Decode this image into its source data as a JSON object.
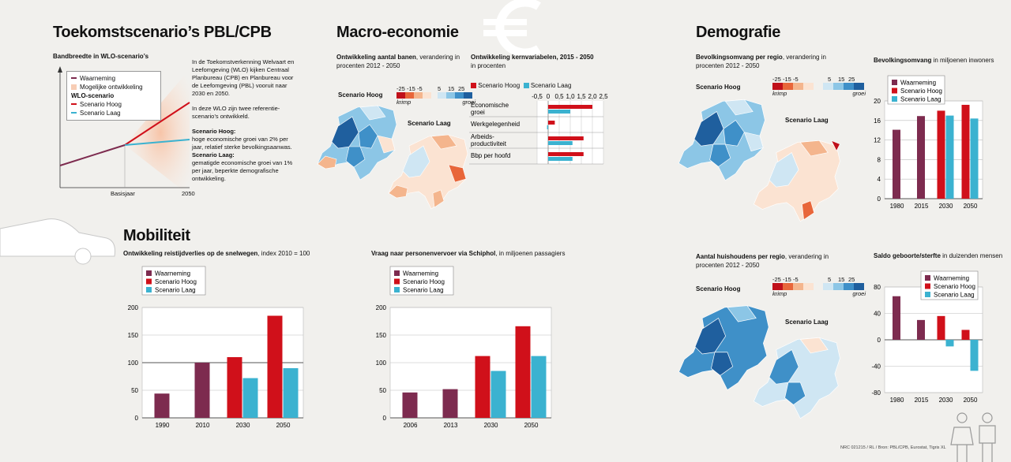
{
  "colors": {
    "waarneming": "#7d2b4f",
    "hoog": "#d0101a",
    "laag": "#3bb2d0"
  },
  "left": {
    "title": "Toekomstscenario’s PBL/CPB",
    "subtitle": "Bandbreedte in WLO-scenario’s",
    "legend": [
      "Waarneming",
      "Mogelijke ontwikkeling",
      "WLO-scenario",
      "Scenario Hoog",
      "Scenario Laag"
    ],
    "x_labels": [
      "Basisjaar",
      "2050"
    ],
    "text1": "In de Toekomstverkenning Welvaart en Leefomgeving (WLO) kijken Centraal Planbureau (CPB) en Planbureau voor de Leefomgeving (PBL) vooruit naar 2030 en 2050.",
    "text2": "In deze WLO zijn twee referentie-scenario’s ontwikkeld.",
    "hoog_title": "Scenario Hoog:",
    "hoog_text": "hoge economische groei van 2% per jaar, relatief sterke bevolkingsaanwas.",
    "laag_title": "Scenario Laag:",
    "laag_text": "gematigde economische groei van 1% per jaar, beperkte demografische ontwikkeling."
  },
  "macro": {
    "title": "Macro-economie",
    "banen_title": "Ontwikkeling aantal banen",
    "banen_sub": ", verandering in procenten 2012 - 2050",
    "scale_labels": [
      "-25",
      "-15",
      "-5",
      "5",
      "15",
      "25"
    ],
    "krimp": "krimp",
    "groei": "groei",
    "map_hoog": "Scenario Hoog",
    "map_laag": "Scenario Laag",
    "kern_title": "Ontwikkeling kernvariabelen, 2015 - 2050",
    "kern_sub": "in procenten",
    "legend_hoog": "Scenario Hoog",
    "legend_laag": "Scenario Laag"
  },
  "demo": {
    "title": "Demografie",
    "bev_title": "Bevolkingsomvang per regio",
    "bev_sub": ", verandering in procenten 2012 - 2050",
    "hh_title": "Aantal huishoudens per regio",
    "hh_sub": ", verandering in procenten 2012 - 2050",
    "omvang_title": "Bevolkingsomvang",
    "omvang_sub": " in miljoenen inwoners",
    "saldo_title": "Saldo geboorte/sterfte",
    "saldo_sub": " in duizenden mensen",
    "legend": [
      "Waarneming",
      "Scenario Hoog",
      "Scenario Laag"
    ],
    "map_hoog": "Scenario Hoog",
    "map_laag": "Scenario Laag"
  },
  "mob": {
    "title": "Mobiliteit",
    "reis_title": "Ontwikkeling reistijdverlies op de snelwegen",
    "reis_sub": ", index 2010 = 100",
    "schiphol_title": "Vraag naar personenvervoer via Schiphol",
    "schiphol_sub": ", in miljoenen passagiers",
    "legend": [
      "Waarneming",
      "Scenario Hoog",
      "Scenario Laag"
    ]
  },
  "source": "NRC 021215 / RL / Bron: PBL/CPB, Eurostat, Tigris XL",
  "chart_data": [
    {
      "type": "bar",
      "id": "kernvariabelen",
      "title": "Ontwikkeling kernvariabelen, 2015 - 2050",
      "orientation": "horizontal",
      "categories": [
        "Economische groei",
        "Werkgelegenheid",
        "Arbeids-productiviteit",
        "Bbp per hoofd"
      ],
      "series": [
        {
          "name": "Scenario Hoog",
          "values": [
            2.0,
            0.3,
            1.6,
            1.6
          ]
        },
        {
          "name": "Scenario Laag",
          "values": [
            1.0,
            -0.05,
            1.1,
            1.1
          ]
        }
      ],
      "xlim": [
        -0.5,
        2.5
      ],
      "xticks": [
        "-0,5",
        "0",
        "0,5",
        "1,0",
        "1,5",
        "2,0",
        "2,5"
      ]
    },
    {
      "type": "bar",
      "id": "bevolkingsomvang",
      "title": "Bevolkingsomvang",
      "categories": [
        "1980",
        "2015",
        "2030",
        "2050"
      ],
      "series": [
        {
          "name": "Waarneming",
          "values": [
            14.1,
            16.9,
            null,
            null
          ]
        },
        {
          "name": "Scenario Hoog",
          "values": [
            null,
            null,
            18.0,
            19.2
          ]
        },
        {
          "name": "Scenario Laag",
          "values": [
            null,
            null,
            17.0,
            16.4
          ]
        }
      ],
      "ylim": [
        0,
        20
      ],
      "yticks": [
        0,
        4,
        8,
        12,
        16,
        20
      ]
    },
    {
      "type": "bar",
      "id": "saldo",
      "title": "Saldo geboorte/sterfte",
      "categories": [
        "1980",
        "2015",
        "2030",
        "2050"
      ],
      "series": [
        {
          "name": "Waarneming",
          "values": [
            66,
            30,
            null,
            null
          ]
        },
        {
          "name": "Scenario Hoog",
          "values": [
            null,
            null,
            36,
            15
          ]
        },
        {
          "name": "Scenario Laag",
          "values": [
            null,
            null,
            -10,
            -47
          ]
        }
      ],
      "ylim": [
        -80,
        80
      ],
      "yticks": [
        -80,
        -40,
        0,
        40,
        80
      ]
    },
    {
      "type": "bar",
      "id": "reistijdverlies",
      "title": "Ontwikkeling reistijdverlies op de snelwegen",
      "categories": [
        "1990",
        "2010",
        "2030",
        "2050"
      ],
      "series": [
        {
          "name": "Waarneming",
          "values": [
            44,
            100,
            null,
            null
          ]
        },
        {
          "name": "Scenario Hoog",
          "values": [
            null,
            null,
            110,
            185
          ]
        },
        {
          "name": "Scenario Laag",
          "values": [
            null,
            null,
            72,
            90
          ]
        }
      ],
      "ylim": [
        0,
        200
      ],
      "yticks": [
        0,
        50,
        100,
        150,
        200
      ]
    },
    {
      "type": "bar",
      "id": "schiphol",
      "title": "Vraag naar personenvervoer via Schiphol",
      "categories": [
        "2006",
        "2013",
        "2030",
        "2050"
      ],
      "series": [
        {
          "name": "Waarneming",
          "values": [
            46,
            52,
            null,
            null
          ]
        },
        {
          "name": "Scenario Hoog",
          "values": [
            null,
            null,
            112,
            166
          ]
        },
        {
          "name": "Scenario Laag",
          "values": [
            null,
            null,
            85,
            112
          ]
        }
      ],
      "ylim": [
        0,
        200
      ],
      "yticks": [
        0,
        50,
        100,
        150,
        200
      ]
    }
  ]
}
